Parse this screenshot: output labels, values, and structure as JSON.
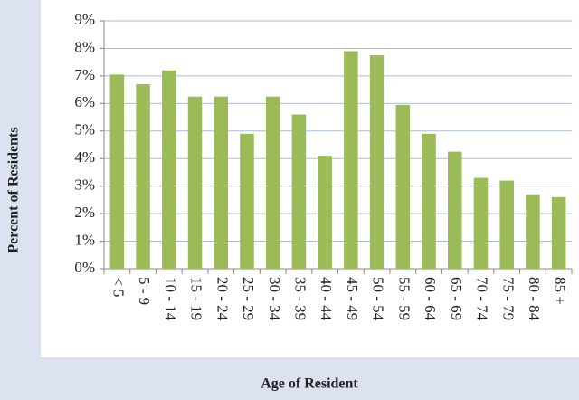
{
  "chart_data": {
    "type": "bar",
    "x_label": "Age of Resident",
    "y_label": "Percent of Residents",
    "categories": [
      "< 5",
      "5 - 9",
      "10 - 14",
      "15 - 19",
      "20 - 24",
      "25 - 29",
      "30 - 34",
      "35 - 39",
      "40 - 44",
      "45 - 49",
      "50 - 54",
      "55 - 59",
      "60 - 64",
      "65 - 69",
      "70 - 74",
      "75 - 79",
      "80 - 84",
      "85 +"
    ],
    "values": [
      7.05,
      6.7,
      7.2,
      6.25,
      6.25,
      4.9,
      6.25,
      5.6,
      4.1,
      7.9,
      7.75,
      5.95,
      4.9,
      4.25,
      3.3,
      3.2,
      2.7,
      2.6
    ],
    "color": "#9bbb59",
    "ylim": [
      0,
      9
    ],
    "yticks": [
      {
        "value": 0,
        "label": "0%"
      },
      {
        "value": 1,
        "label": "1%"
      },
      {
        "value": 2,
        "label": "2%"
      },
      {
        "value": 3,
        "label": "3%"
      },
      {
        "value": 4,
        "label": "4%"
      },
      {
        "value": 5,
        "label": "5%"
      },
      {
        "value": 6,
        "label": "6%"
      },
      {
        "value": 7,
        "label": "7%"
      },
      {
        "value": 8,
        "label": "8%"
      },
      {
        "value": 9,
        "label": "9%"
      }
    ],
    "grid": true
  }
}
